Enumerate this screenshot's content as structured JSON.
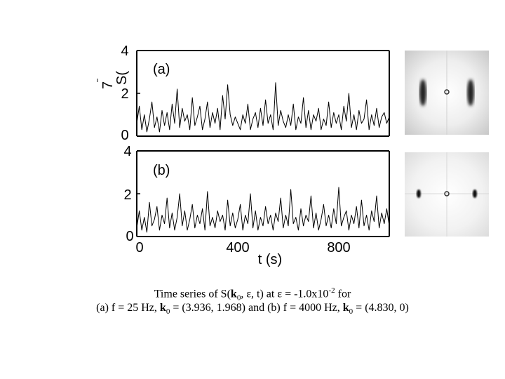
{
  "chart_data": [
    {
      "type": "line",
      "panel_label": "(a)",
      "ylabel": "S(",
      "ylabel_extra": "7",
      "xlim": [
        0,
        1000
      ],
      "ylim": [
        0,
        4
      ],
      "y_ticks": [
        "0",
        "2",
        "4"
      ],
      "x_ticks": [],
      "x_tick_values": [],
      "grid": false,
      "series": [
        {
          "x": [
            0,
            10,
            20,
            30,
            40,
            50,
            60,
            70,
            80,
            90,
            100,
            110,
            120,
            130,
            140,
            150,
            160,
            170,
            180,
            190,
            200,
            210,
            220,
            230,
            240,
            250,
            260,
            270,
            280,
            290,
            300,
            310,
            320,
            330,
            340,
            350,
            360,
            370,
            380,
            390,
            400,
            410,
            420,
            430,
            440,
            450,
            460,
            470,
            480,
            490,
            500,
            510,
            520,
            530,
            540,
            550,
            560,
            570,
            580,
            590,
            600,
            610,
            620,
            630,
            640,
            650,
            660,
            670,
            680,
            690,
            700,
            710,
            720,
            730,
            740,
            750,
            760,
            770,
            780,
            790,
            800,
            810,
            820,
            830,
            840,
            850,
            860,
            870,
            880,
            890,
            900,
            910,
            920,
            930,
            940,
            950,
            960,
            970,
            980,
            990,
            1000
          ],
          "y": [
            0.6,
            1.4,
            0.3,
            1.0,
            0.2,
            0.8,
            1.6,
            0.4,
            0.9,
            0.2,
            1.2,
            0.5,
            1.1,
            0.3,
            1.5,
            0.6,
            2.2,
            0.4,
            1.3,
            0.7,
            1.0,
            0.3,
            1.8,
            0.5,
            0.9,
            1.4,
            0.3,
            0.8,
            1.6,
            0.4,
            1.1,
            0.6,
            1.3,
            0.3,
            1.9,
            0.8,
            2.4,
            1.0,
            0.5,
            0.9,
            0.6,
            0.3,
            1.0,
            0.6,
            1.5,
            0.3,
            0.8,
            1.1,
            0.4,
            1.3,
            0.5,
            1.7,
            0.6,
            1.0,
            0.3,
            2.5,
            0.5,
            1.2,
            0.7,
            0.4,
            1.0,
            0.5,
            1.5,
            0.3,
            0.9,
            0.6,
            1.8,
            0.4,
            1.2,
            0.3,
            1.0,
            0.7,
            1.3,
            0.3,
            0.8,
            0.5,
            1.6,
            0.4,
            1.1,
            0.6,
            1.0,
            0.3,
            1.4,
            0.7,
            2.0,
            0.4,
            1.0,
            0.3,
            1.2,
            0.6,
            0.8,
            1.7,
            0.3,
            1.0,
            0.5,
            1.3,
            0.4,
            0.9,
            1.1,
            0.6,
            0.9
          ]
        }
      ]
    },
    {
      "type": "line",
      "panel_label": "(b)",
      "xlabel": "t (s)",
      "xlim": [
        0,
        1000
      ],
      "ylim": [
        0,
        4
      ],
      "y_ticks": [
        "0",
        "2",
        "4"
      ],
      "x_ticks": [
        "0",
        "400",
        "800"
      ],
      "x_tick_values": [
        0,
        400,
        800
      ],
      "grid": false,
      "series": [
        {
          "x": [
            0,
            10,
            20,
            30,
            40,
            50,
            60,
            70,
            80,
            90,
            100,
            110,
            120,
            130,
            140,
            150,
            160,
            170,
            180,
            190,
            200,
            210,
            220,
            230,
            240,
            250,
            260,
            270,
            280,
            290,
            300,
            310,
            320,
            330,
            340,
            350,
            360,
            370,
            380,
            390,
            400,
            410,
            420,
            430,
            440,
            450,
            460,
            470,
            480,
            490,
            500,
            510,
            520,
            530,
            540,
            550,
            560,
            570,
            580,
            590,
            600,
            610,
            620,
            630,
            640,
            650,
            660,
            670,
            680,
            690,
            700,
            710,
            720,
            730,
            740,
            750,
            760,
            770,
            780,
            790,
            800,
            810,
            820,
            830,
            840,
            850,
            860,
            870,
            880,
            890,
            900,
            910,
            920,
            930,
            940,
            950,
            960,
            970,
            980,
            990,
            1000
          ],
          "y": [
            0.4,
            1.2,
            0.3,
            0.9,
            0.2,
            1.6,
            0.5,
            0.8,
            1.4,
            0.3,
            1.0,
            0.6,
            1.8,
            0.4,
            1.1,
            0.3,
            0.9,
            2.0,
            0.5,
            1.2,
            0.3,
            0.8,
            1.5,
            0.4,
            1.0,
            0.6,
            1.3,
            0.3,
            2.1,
            0.5,
            0.9,
            0.4,
            1.2,
            0.7,
            1.0,
            0.3,
            1.7,
            0.5,
            1.1,
            0.4,
            0.8,
            1.5,
            0.3,
            1.0,
            0.6,
            2.0,
            0.4,
            1.2,
            0.3,
            0.9,
            0.5,
            1.4,
            0.6,
            1.0,
            0.3,
            1.1,
            0.7,
            1.8,
            0.4,
            1.0,
            0.5,
            2.2,
            0.6,
            0.9,
            0.3,
            1.3,
            0.5,
            1.0,
            0.7,
            1.9,
            0.4,
            1.1,
            0.3,
            0.8,
            1.5,
            0.5,
            1.0,
            0.4,
            1.3,
            0.6,
            2.3,
            0.5,
            0.9,
            1.2,
            0.3,
            1.0,
            0.6,
            1.4,
            0.4,
            1.7,
            0.5,
            1.0,
            0.3,
            1.2,
            0.7,
            1.9,
            0.4,
            1.1,
            0.6,
            1.3,
            0.5
          ]
        }
      ]
    }
  ],
  "images": [
    {
      "name": "fourier-pattern-a"
    },
    {
      "name": "fourier-pattern-b"
    }
  ],
  "caption": {
    "line1": {
      "prefix": "Time series of S(",
      "k": "k",
      "k_sub": "0",
      "mid": ", ",
      "eps1": "ε",
      "mid2": ", t) at ",
      "eps2": "ε",
      "eq": " = -1.0x10",
      "exp": "-2",
      "suffix": " for"
    },
    "line2": {
      "a": "(a) f = 25 Hz, ",
      "k1": "k",
      "k1_sub": "0",
      "a_val": " = (3.936, 1.968) and (b) f = 4000 Hz, ",
      "k2": "k",
      "k2_sub": "0",
      "b_val": " = (4.830, 0)"
    }
  }
}
